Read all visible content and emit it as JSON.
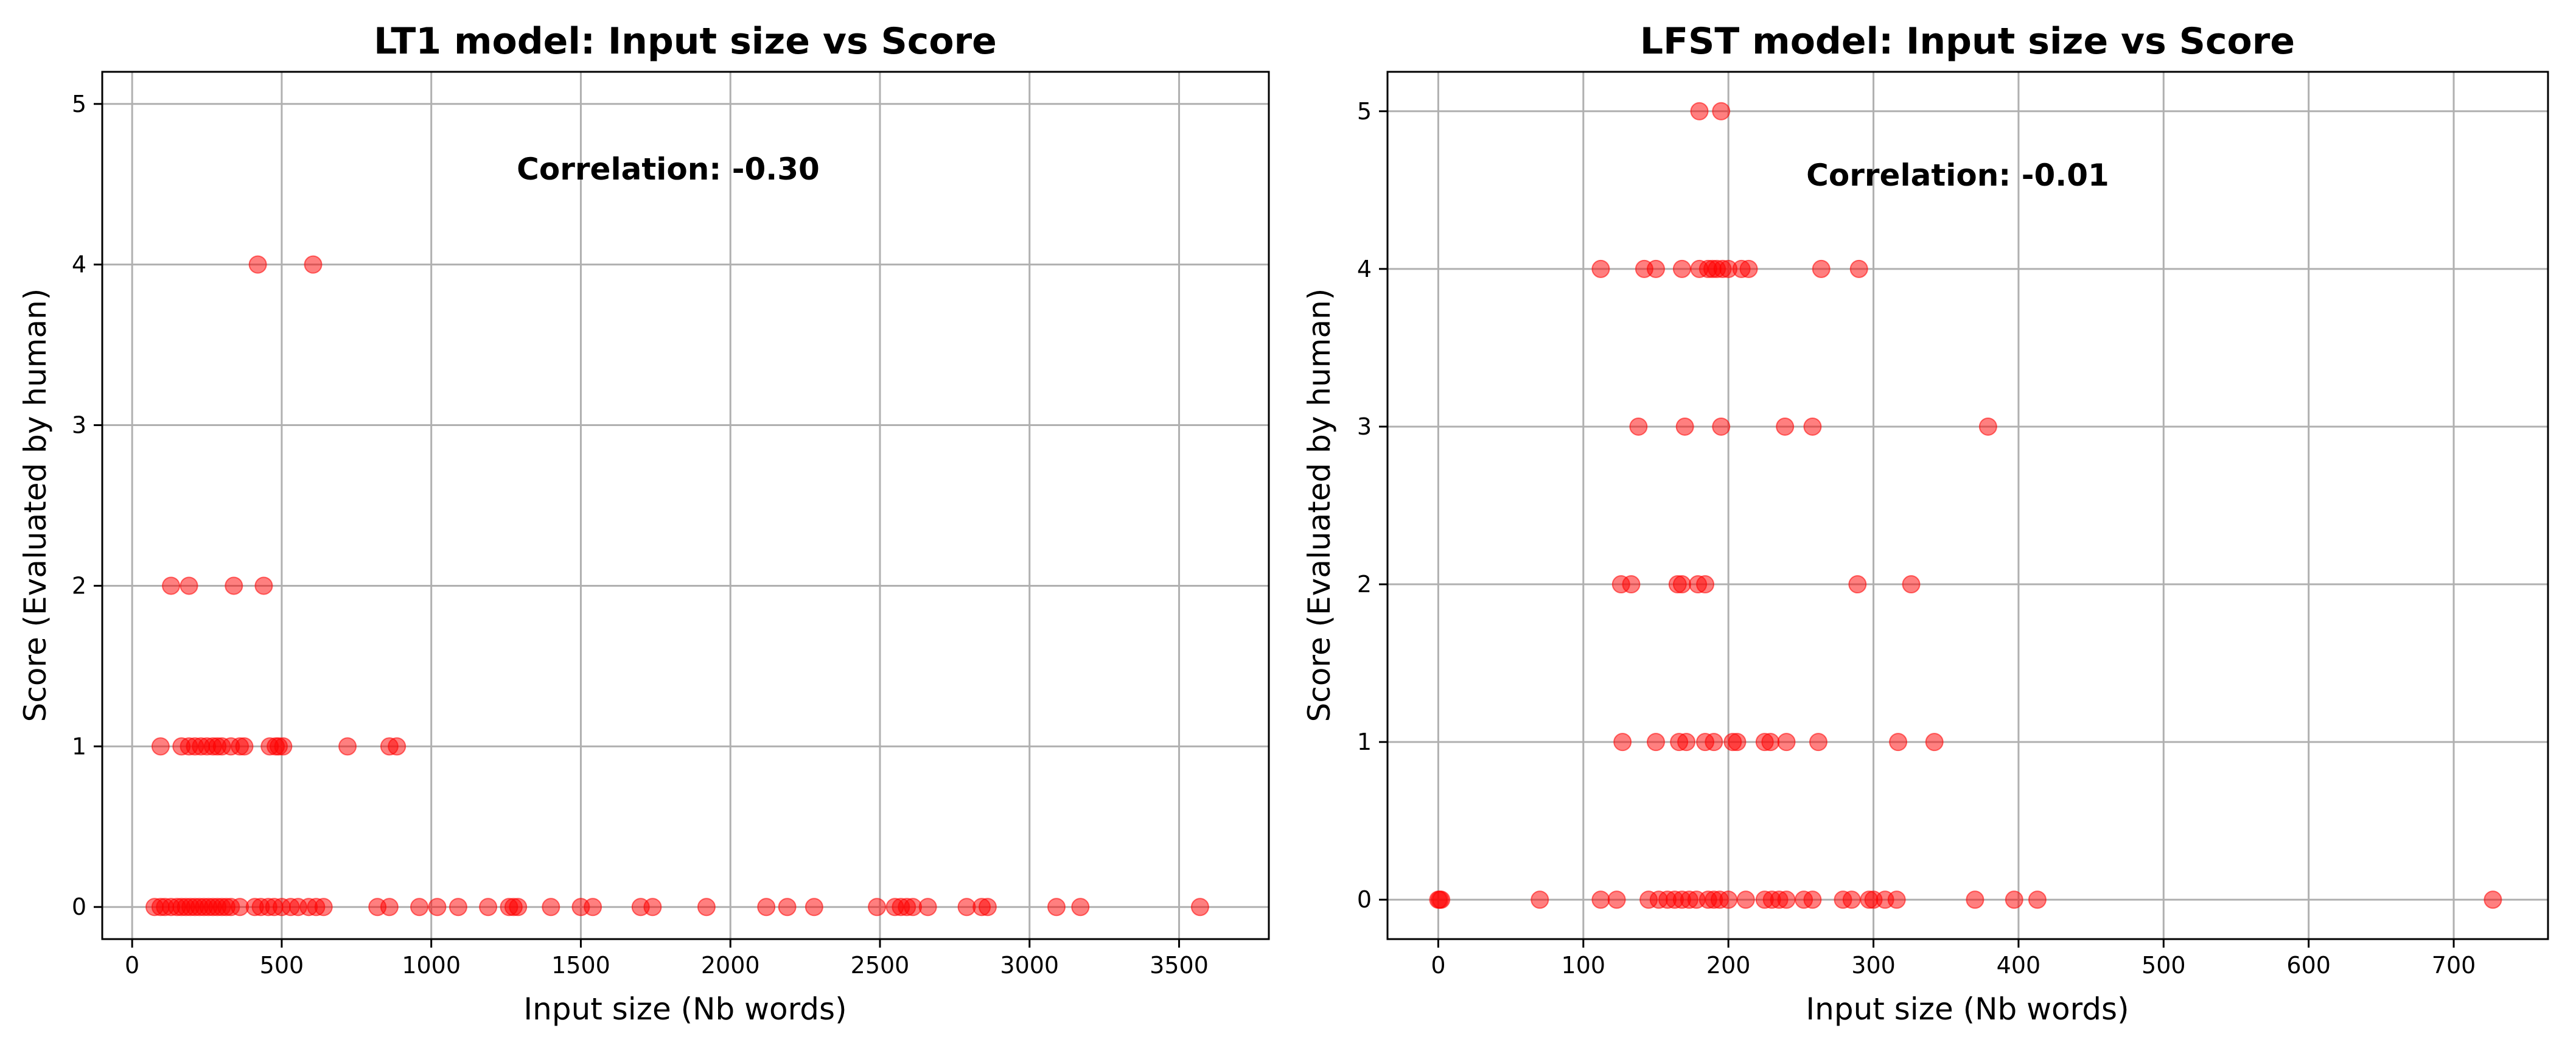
{
  "chart_data": [
    {
      "type": "scatter",
      "title": "LT1 model: Input size vs Score",
      "xlabel": "Input size (Nb words)",
      "ylabel": "Score (Evaluated by human)",
      "xlim": [
        -100,
        3800
      ],
      "ylim": [
        -0.2,
        5.2
      ],
      "xticks": [
        0,
        500,
        1000,
        1500,
        2000,
        2500,
        3000,
        3500
      ],
      "yticks": [
        0,
        1,
        2,
        3,
        4,
        5
      ],
      "grid": true,
      "annotation": "Correlation: -0.30",
      "point_color": "#ff0000",
      "points": [
        [
          75,
          0
        ],
        [
          95,
          0
        ],
        [
          110,
          0
        ],
        [
          130,
          0
        ],
        [
          150,
          0
        ],
        [
          165,
          0
        ],
        [
          180,
          0
        ],
        [
          195,
          0
        ],
        [
          210,
          0
        ],
        [
          225,
          0
        ],
        [
          240,
          0
        ],
        [
          255,
          0
        ],
        [
          270,
          0
        ],
        [
          285,
          0
        ],
        [
          300,
          0
        ],
        [
          315,
          0
        ],
        [
          330,
          0
        ],
        [
          360,
          0
        ],
        [
          410,
          0
        ],
        [
          430,
          0
        ],
        [
          455,
          0
        ],
        [
          475,
          0
        ],
        [
          500,
          0
        ],
        [
          530,
          0
        ],
        [
          555,
          0
        ],
        [
          590,
          0
        ],
        [
          615,
          0
        ],
        [
          640,
          0
        ],
        [
          820,
          0
        ],
        [
          860,
          0
        ],
        [
          960,
          0
        ],
        [
          1020,
          0
        ],
        [
          1090,
          0
        ],
        [
          1190,
          0
        ],
        [
          1260,
          0
        ],
        [
          1275,
          0
        ],
        [
          1290,
          0
        ],
        [
          1400,
          0
        ],
        [
          1500,
          0
        ],
        [
          1540,
          0
        ],
        [
          1700,
          0
        ],
        [
          1740,
          0
        ],
        [
          1920,
          0
        ],
        [
          2120,
          0
        ],
        [
          2190,
          0
        ],
        [
          2280,
          0
        ],
        [
          2490,
          0
        ],
        [
          2550,
          0
        ],
        [
          2570,
          0
        ],
        [
          2590,
          0
        ],
        [
          2610,
          0
        ],
        [
          2660,
          0
        ],
        [
          2790,
          0
        ],
        [
          2840,
          0
        ],
        [
          2860,
          0
        ],
        [
          3090,
          0
        ],
        [
          3170,
          0
        ],
        [
          3570,
          0
        ],
        [
          95,
          1
        ],
        [
          165,
          1
        ],
        [
          190,
          1
        ],
        [
          210,
          1
        ],
        [
          230,
          1
        ],
        [
          250,
          1
        ],
        [
          270,
          1
        ],
        [
          285,
          1
        ],
        [
          300,
          1
        ],
        [
          330,
          1
        ],
        [
          360,
          1
        ],
        [
          375,
          1
        ],
        [
          460,
          1
        ],
        [
          480,
          1
        ],
        [
          490,
          1
        ],
        [
          505,
          1
        ],
        [
          720,
          1
        ],
        [
          860,
          1
        ],
        [
          885,
          1
        ],
        [
          130,
          2
        ],
        [
          190,
          2
        ],
        [
          340,
          2
        ],
        [
          440,
          2
        ],
        [
          420,
          4
        ],
        [
          605,
          4
        ]
      ]
    },
    {
      "type": "scatter",
      "title": "LFST model: Input size vs Score",
      "xlabel": "Input size (Nb words)",
      "ylabel": "Score (Evaluated by human)",
      "xlim": [
        -35,
        765
      ],
      "ylim": [
        -0.25,
        5.25
      ],
      "xticks": [
        0,
        100,
        200,
        300,
        400,
        500,
        600,
        700
      ],
      "yticks": [
        0,
        1,
        2,
        3,
        4,
        5
      ],
      "grid": true,
      "annotation": "Correlation: -0.01",
      "point_color": "#ff0000",
      "points": [
        [
          0,
          0
        ],
        [
          1,
          0
        ],
        [
          2,
          0
        ],
        [
          70,
          0
        ],
        [
          112,
          0
        ],
        [
          123,
          0
        ],
        [
          145,
          0
        ],
        [
          152,
          0
        ],
        [
          158,
          0
        ],
        [
          163,
          0
        ],
        [
          168,
          0
        ],
        [
          173,
          0
        ],
        [
          178,
          0
        ],
        [
          186,
          0
        ],
        [
          190,
          0
        ],
        [
          194,
          0
        ],
        [
          200,
          0
        ],
        [
          212,
          0
        ],
        [
          225,
          0
        ],
        [
          230,
          0
        ],
        [
          235,
          0
        ],
        [
          240,
          0
        ],
        [
          252,
          0
        ],
        [
          258,
          0
        ],
        [
          279,
          0
        ],
        [
          285,
          0
        ],
        [
          297,
          0
        ],
        [
          300,
          0
        ],
        [
          308,
          0
        ],
        [
          316,
          0
        ],
        [
          370,
          0
        ],
        [
          397,
          0
        ],
        [
          413,
          0
        ],
        [
          727,
          0
        ],
        [
          127,
          1
        ],
        [
          150,
          1
        ],
        [
          166,
          1
        ],
        [
          171,
          1
        ],
        [
          184,
          1
        ],
        [
          190,
          1
        ],
        [
          203,
          1
        ],
        [
          206,
          1
        ],
        [
          225,
          1
        ],
        [
          229,
          1
        ],
        [
          240,
          1
        ],
        [
          262,
          1
        ],
        [
          317,
          1
        ],
        [
          342,
          1
        ],
        [
          126,
          2
        ],
        [
          133,
          2
        ],
        [
          165,
          2
        ],
        [
          168,
          2
        ],
        [
          179,
          2
        ],
        [
          184,
          2
        ],
        [
          289,
          2
        ],
        [
          326,
          2
        ],
        [
          138,
          3
        ],
        [
          170,
          3
        ],
        [
          195,
          3
        ],
        [
          239,
          3
        ],
        [
          258,
          3
        ],
        [
          379,
          3
        ],
        [
          112,
          4
        ],
        [
          142,
          4
        ],
        [
          150,
          4
        ],
        [
          168,
          4
        ],
        [
          180,
          4
        ],
        [
          186,
          4
        ],
        [
          189,
          4
        ],
        [
          192,
          4
        ],
        [
          196,
          4
        ],
        [
          200,
          4
        ],
        [
          209,
          4
        ],
        [
          214,
          4
        ],
        [
          264,
          4
        ],
        [
          290,
          4
        ],
        [
          180,
          5
        ],
        [
          195,
          5
        ]
      ]
    }
  ]
}
